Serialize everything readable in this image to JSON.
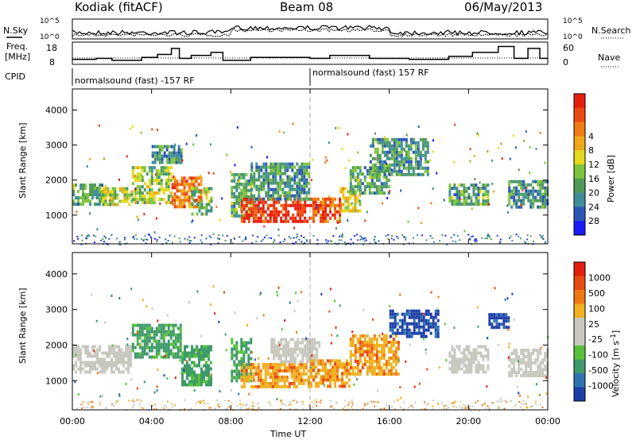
{
  "header": {
    "station": "Kodiak (fitACF)",
    "beam": "Beam 08",
    "date": "06/May/2013"
  },
  "param_strip": {
    "nsky_label": "N.Sky",
    "nsearch_label": "N.Search",
    "noise_ticks": [
      "10^5",
      "10^0"
    ],
    "freq_label_1": "Freq.",
    "freq_label_2": "[MHz]",
    "freq_ticks": [
      "18",
      "8"
    ],
    "nave_label": "Nave",
    "nave_ticks": [
      "60",
      "0"
    ],
    "cpid_label": "CPID",
    "cpid_segments": [
      {
        "start": 0,
        "end": 12,
        "text": "normalsound (fast) -157 RF"
      },
      {
        "start": 12,
        "end": 24,
        "text": "normalsound (fast) 157 RF"
      }
    ]
  },
  "chart_data": [
    {
      "type": "heatmap",
      "name": "power",
      "xlabel": "Time UT",
      "ylabel": "Slant Range [km]",
      "xlim": [
        0,
        24
      ],
      "ylim": [
        180,
        4600
      ],
      "yticks": [
        1000,
        2000,
        3000,
        4000
      ],
      "colorbar": {
        "label": "Power [dB]",
        "ticks": [
          "4",
          "8",
          "12",
          "16",
          "20",
          "24",
          "28"
        ],
        "colors": [
          "#1a1aff",
          "#2b56b8",
          "#3f8f9a",
          "#4f9a55",
          "#7ec43c",
          "#e4d81c",
          "#f0a818",
          "#f07b12",
          "#ec4a10",
          "#e81e0c"
        ]
      },
      "regions": [
        {
          "t0": 0.0,
          "t1": 1.5,
          "r0": 1300,
          "r1": 1900,
          "level": 0.35
        },
        {
          "t0": 1.5,
          "t1": 3.0,
          "r0": 1300,
          "r1": 1800,
          "level": 0.5
        },
        {
          "t0": 3.0,
          "t1": 5.0,
          "r0": 1400,
          "r1": 2400,
          "level": 0.45
        },
        {
          "t0": 4.0,
          "t1": 5.5,
          "r0": 2500,
          "r1": 3000,
          "level": 0.3
        },
        {
          "t0": 5.0,
          "t1": 6.5,
          "r0": 1200,
          "r1": 2100,
          "level": 0.75
        },
        {
          "t0": 6.0,
          "t1": 7.0,
          "r0": 1000,
          "r1": 1800,
          "level": 0.4
        },
        {
          "t0": 8.0,
          "t1": 9.0,
          "r0": 1000,
          "r1": 2200,
          "level": 0.35
        },
        {
          "t0": 8.5,
          "t1": 10.0,
          "r0": 800,
          "r1": 1500,
          "level": 0.9
        },
        {
          "t0": 10.0,
          "t1": 12.0,
          "r0": 800,
          "r1": 1500,
          "level": 0.95
        },
        {
          "t0": 9.0,
          "t1": 12.0,
          "r0": 1500,
          "r1": 2500,
          "level": 0.3
        },
        {
          "t0": 12.0,
          "t1": 13.5,
          "r0": 800,
          "r1": 1500,
          "level": 0.85
        },
        {
          "t0": 13.5,
          "t1": 14.5,
          "r0": 1100,
          "r1": 1800,
          "level": 0.6
        },
        {
          "t0": 14.0,
          "t1": 16.0,
          "r0": 1600,
          "r1": 2400,
          "level": 0.35
        },
        {
          "t0": 15.0,
          "t1": 18.0,
          "r0": 2200,
          "r1": 3200,
          "level": 0.3
        },
        {
          "t0": 19.0,
          "t1": 21.0,
          "r0": 1300,
          "r1": 1900,
          "level": 0.35
        },
        {
          "t0": 22.0,
          "t1": 24.0,
          "r0": 1200,
          "r1": 2000,
          "level": 0.3
        }
      ]
    },
    {
      "type": "heatmap",
      "name": "velocity",
      "xlabel": "Time UT",
      "ylabel": "Slant Range [km]",
      "xlim": [
        0,
        24
      ],
      "ylim": [
        180,
        4600
      ],
      "yticks": [
        1000,
        2000,
        3000,
        4000
      ],
      "xticks": [
        "00:00",
        "04:00",
        "08:00",
        "12:00",
        "16:00",
        "20:00",
        "00:00"
      ],
      "colorbar": {
        "label": "Velocity [m s",
        "label_sup": "-1",
        "label_end": "]",
        "ticks": [
          "1000",
          "500",
          "100",
          "25",
          "-25",
          "-100",
          "-500",
          "-1000"
        ],
        "colors": [
          "#1e3fa8",
          "#2f74b0",
          "#3f9a6a",
          "#57c23a",
          "#c8c8c0",
          "#c8c8c0",
          "#f0b020",
          "#f07814",
          "#e84a10",
          "#e41e0c"
        ]
      },
      "regions": [
        {
          "t0": 0.0,
          "t1": 3.0,
          "r0": 1200,
          "r1": 2000,
          "cls": "gray"
        },
        {
          "t0": 3.0,
          "t1": 5.5,
          "r0": 1700,
          "r1": 2600,
          "cls": "green"
        },
        {
          "t0": 5.5,
          "t1": 7.0,
          "r0": 900,
          "r1": 2000,
          "cls": "green"
        },
        {
          "t0": 8.0,
          "t1": 9.0,
          "r0": 1000,
          "r1": 2200,
          "cls": "green"
        },
        {
          "t0": 8.5,
          "t1": 12.0,
          "r0": 800,
          "r1": 1500,
          "cls": "orange"
        },
        {
          "t0": 10.0,
          "t1": 12.5,
          "r0": 1500,
          "r1": 2200,
          "cls": "gray"
        },
        {
          "t0": 12.0,
          "t1": 14.0,
          "r0": 800,
          "r1": 1600,
          "cls": "orange"
        },
        {
          "t0": 14.0,
          "t1": 16.5,
          "r0": 1200,
          "r1": 2300,
          "cls": "orange"
        },
        {
          "t0": 16.0,
          "t1": 18.5,
          "r0": 2200,
          "r1": 3000,
          "cls": "blue"
        },
        {
          "t0": 19.0,
          "t1": 21.0,
          "r0": 1200,
          "r1": 2000,
          "cls": "gray"
        },
        {
          "t0": 21.0,
          "t1": 22.0,
          "r0": 2500,
          "r1": 2900,
          "cls": "blue"
        },
        {
          "t0": 22.0,
          "t1": 24.0,
          "r0": 1100,
          "r1": 1900,
          "cls": "gray"
        }
      ]
    }
  ]
}
